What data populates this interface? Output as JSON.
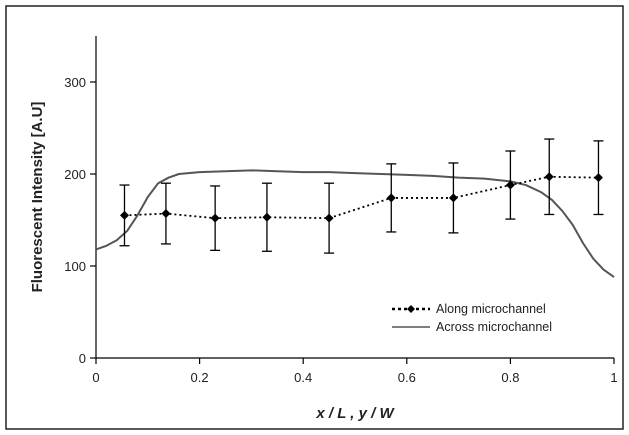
{
  "chart_data": {
    "type": "line",
    "title": "",
    "xlabel": "x / L , y / W",
    "ylabel": "Fluorescent Intensity [A.U]",
    "xlim": [
      0,
      1
    ],
    "ylim": [
      0,
      350
    ],
    "x_ticks": [
      0,
      0.2,
      0.4,
      0.6,
      0.8,
      1
    ],
    "x_tick_labels": [
      "0",
      "0.2",
      "0.4",
      "0.6",
      "0.8",
      "1"
    ],
    "y_ticks": [
      0,
      100,
      200,
      300
    ],
    "y_tick_labels": [
      "0",
      "100",
      "200",
      "300"
    ],
    "grid": false,
    "legend_position": "bottom-right",
    "colors": {
      "along": "#000000",
      "across": "#555555"
    },
    "series": [
      {
        "name": "Along microchannel",
        "style": "dotted-with-markers-and-error-bars",
        "x": [
          0.055,
          0.135,
          0.23,
          0.33,
          0.45,
          0.57,
          0.69,
          0.8,
          0.875,
          0.97
        ],
        "y": [
          155,
          157,
          152,
          153,
          152,
          174,
          174,
          188,
          197,
          196
        ],
        "error": [
          33,
          33,
          35,
          37,
          38,
          37,
          38,
          37,
          41,
          40
        ]
      },
      {
        "name": "Across microchannel",
        "style": "solid",
        "x": [
          0,
          0.02,
          0.04,
          0.06,
          0.08,
          0.1,
          0.12,
          0.14,
          0.16,
          0.2,
          0.25,
          0.3,
          0.35,
          0.4,
          0.45,
          0.5,
          0.55,
          0.6,
          0.65,
          0.7,
          0.75,
          0.8,
          0.83,
          0.86,
          0.88,
          0.9,
          0.92,
          0.94,
          0.96,
          0.98,
          1.0
        ],
        "y": [
          118,
          122,
          128,
          138,
          155,
          175,
          190,
          196,
          200,
          202,
          203,
          204,
          203,
          202,
          202,
          201,
          200,
          199,
          198,
          196,
          195,
          192,
          188,
          180,
          172,
          160,
          145,
          125,
          108,
          96,
          88
        ]
      }
    ]
  }
}
